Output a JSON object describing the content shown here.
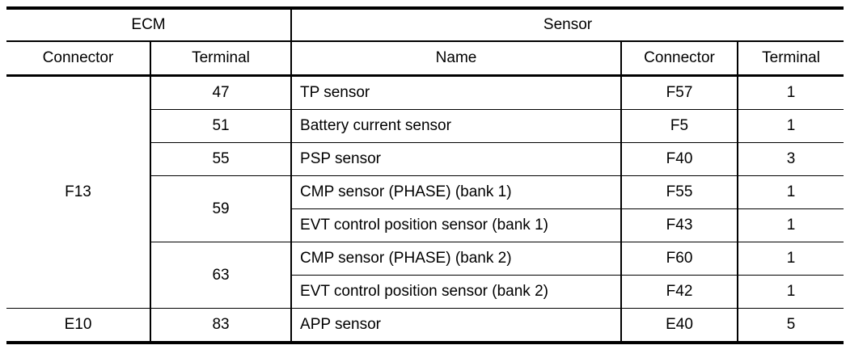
{
  "table": {
    "ecm_group_label": "ECM",
    "sensor_group_label": "Sensor",
    "columns": {
      "ecm_connector": "Connector",
      "ecm_terminal": "Terminal",
      "sensor_name": "Name",
      "sensor_connector": "Connector",
      "sensor_terminal": "Terminal"
    },
    "rows": [
      {
        "ecm_connector": "F13",
        "ecm_terminal": "47",
        "sensor_name": "TP sensor",
        "sensor_connector": "F57",
        "sensor_terminal": "1"
      },
      {
        "ecm_terminal": "51",
        "sensor_name": "Battery current sensor",
        "sensor_connector": "F5",
        "sensor_terminal": "1"
      },
      {
        "ecm_terminal": "55",
        "sensor_name": "PSP sensor",
        "sensor_connector": "F40",
        "sensor_terminal": "3"
      },
      {
        "ecm_terminal": "59",
        "sensor_name": "CMP sensor (PHASE) (bank 1)",
        "sensor_connector": "F55",
        "sensor_terminal": "1"
      },
      {
        "sensor_name": "EVT control position sensor (bank 1)",
        "sensor_connector": "F43",
        "sensor_terminal": "1"
      },
      {
        "ecm_terminal": "63",
        "sensor_name": "CMP sensor (PHASE) (bank 2)",
        "sensor_connector": "F60",
        "sensor_terminal": "1"
      },
      {
        "sensor_name": "EVT control position sensor (bank 2)",
        "sensor_connector": "F42",
        "sensor_terminal": "1"
      },
      {
        "ecm_connector": "E10",
        "ecm_terminal": "83",
        "sensor_name": "APP sensor",
        "sensor_connector": "E40",
        "sensor_terminal": "5"
      }
    ]
  }
}
